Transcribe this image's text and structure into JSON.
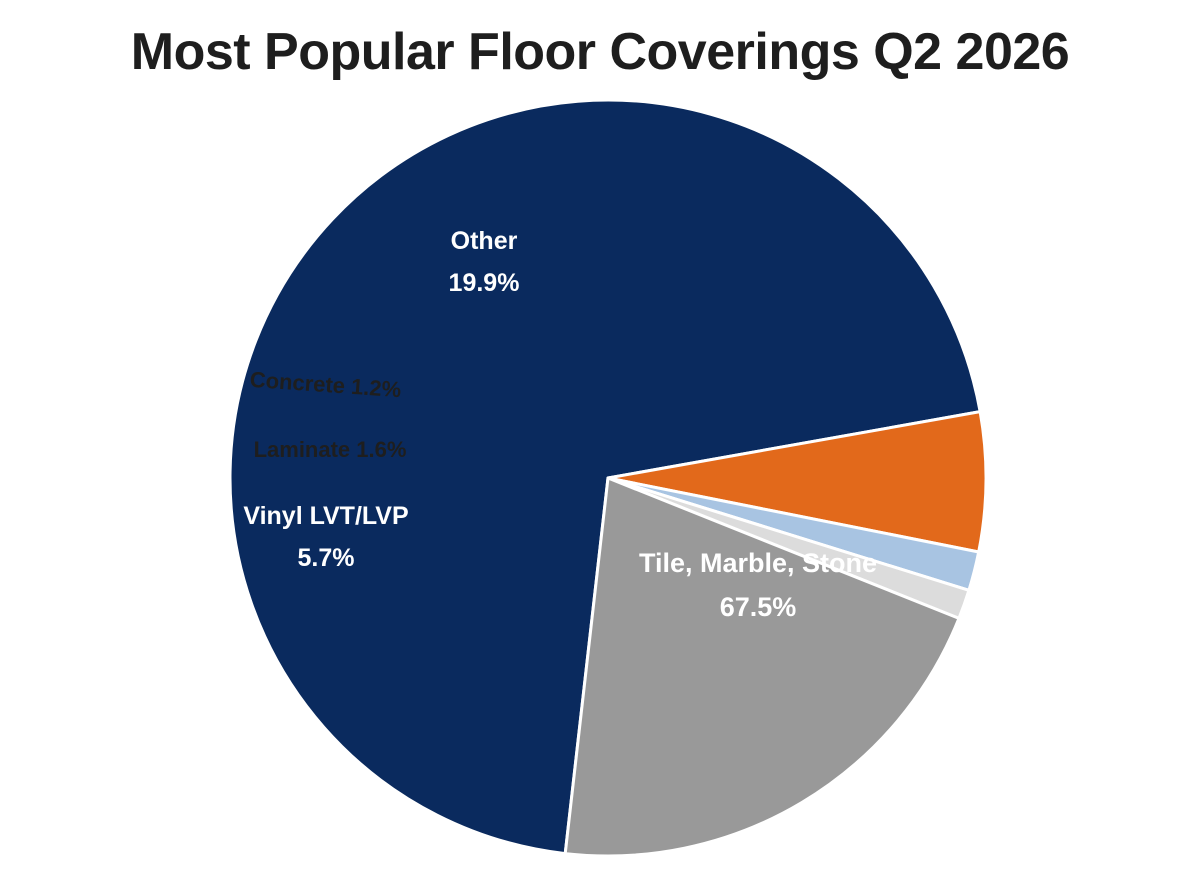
{
  "chart_data": {
    "type": "pie",
    "title": "Most Popular Floor Coverings Q2 2026",
    "slices": [
      {
        "name": "Tile, Marble, Stone",
        "value": 67.5,
        "value_label": "67.5%",
        "color": "#0a2a5e",
        "label_color": "#ffffff"
      },
      {
        "name": "Vinyl LVT/LVP",
        "value": 5.7,
        "value_label": "5.7%",
        "color": "#e2691b",
        "label_color": "#ffffff"
      },
      {
        "name": "Laminate",
        "value": 1.6,
        "value_label": "1.6%",
        "color": "#a8c4e2",
        "label_color": "#1e1e1e"
      },
      {
        "name": "Concrete",
        "value": 1.2,
        "value_label": "1.2%",
        "color": "#dcdcdc",
        "label_color": "#1e1e1e"
      },
      {
        "name": "Other",
        "value": 19.9,
        "value_label": "19.9%",
        "color": "#999999",
        "label_color": "#ffffff"
      }
    ]
  }
}
